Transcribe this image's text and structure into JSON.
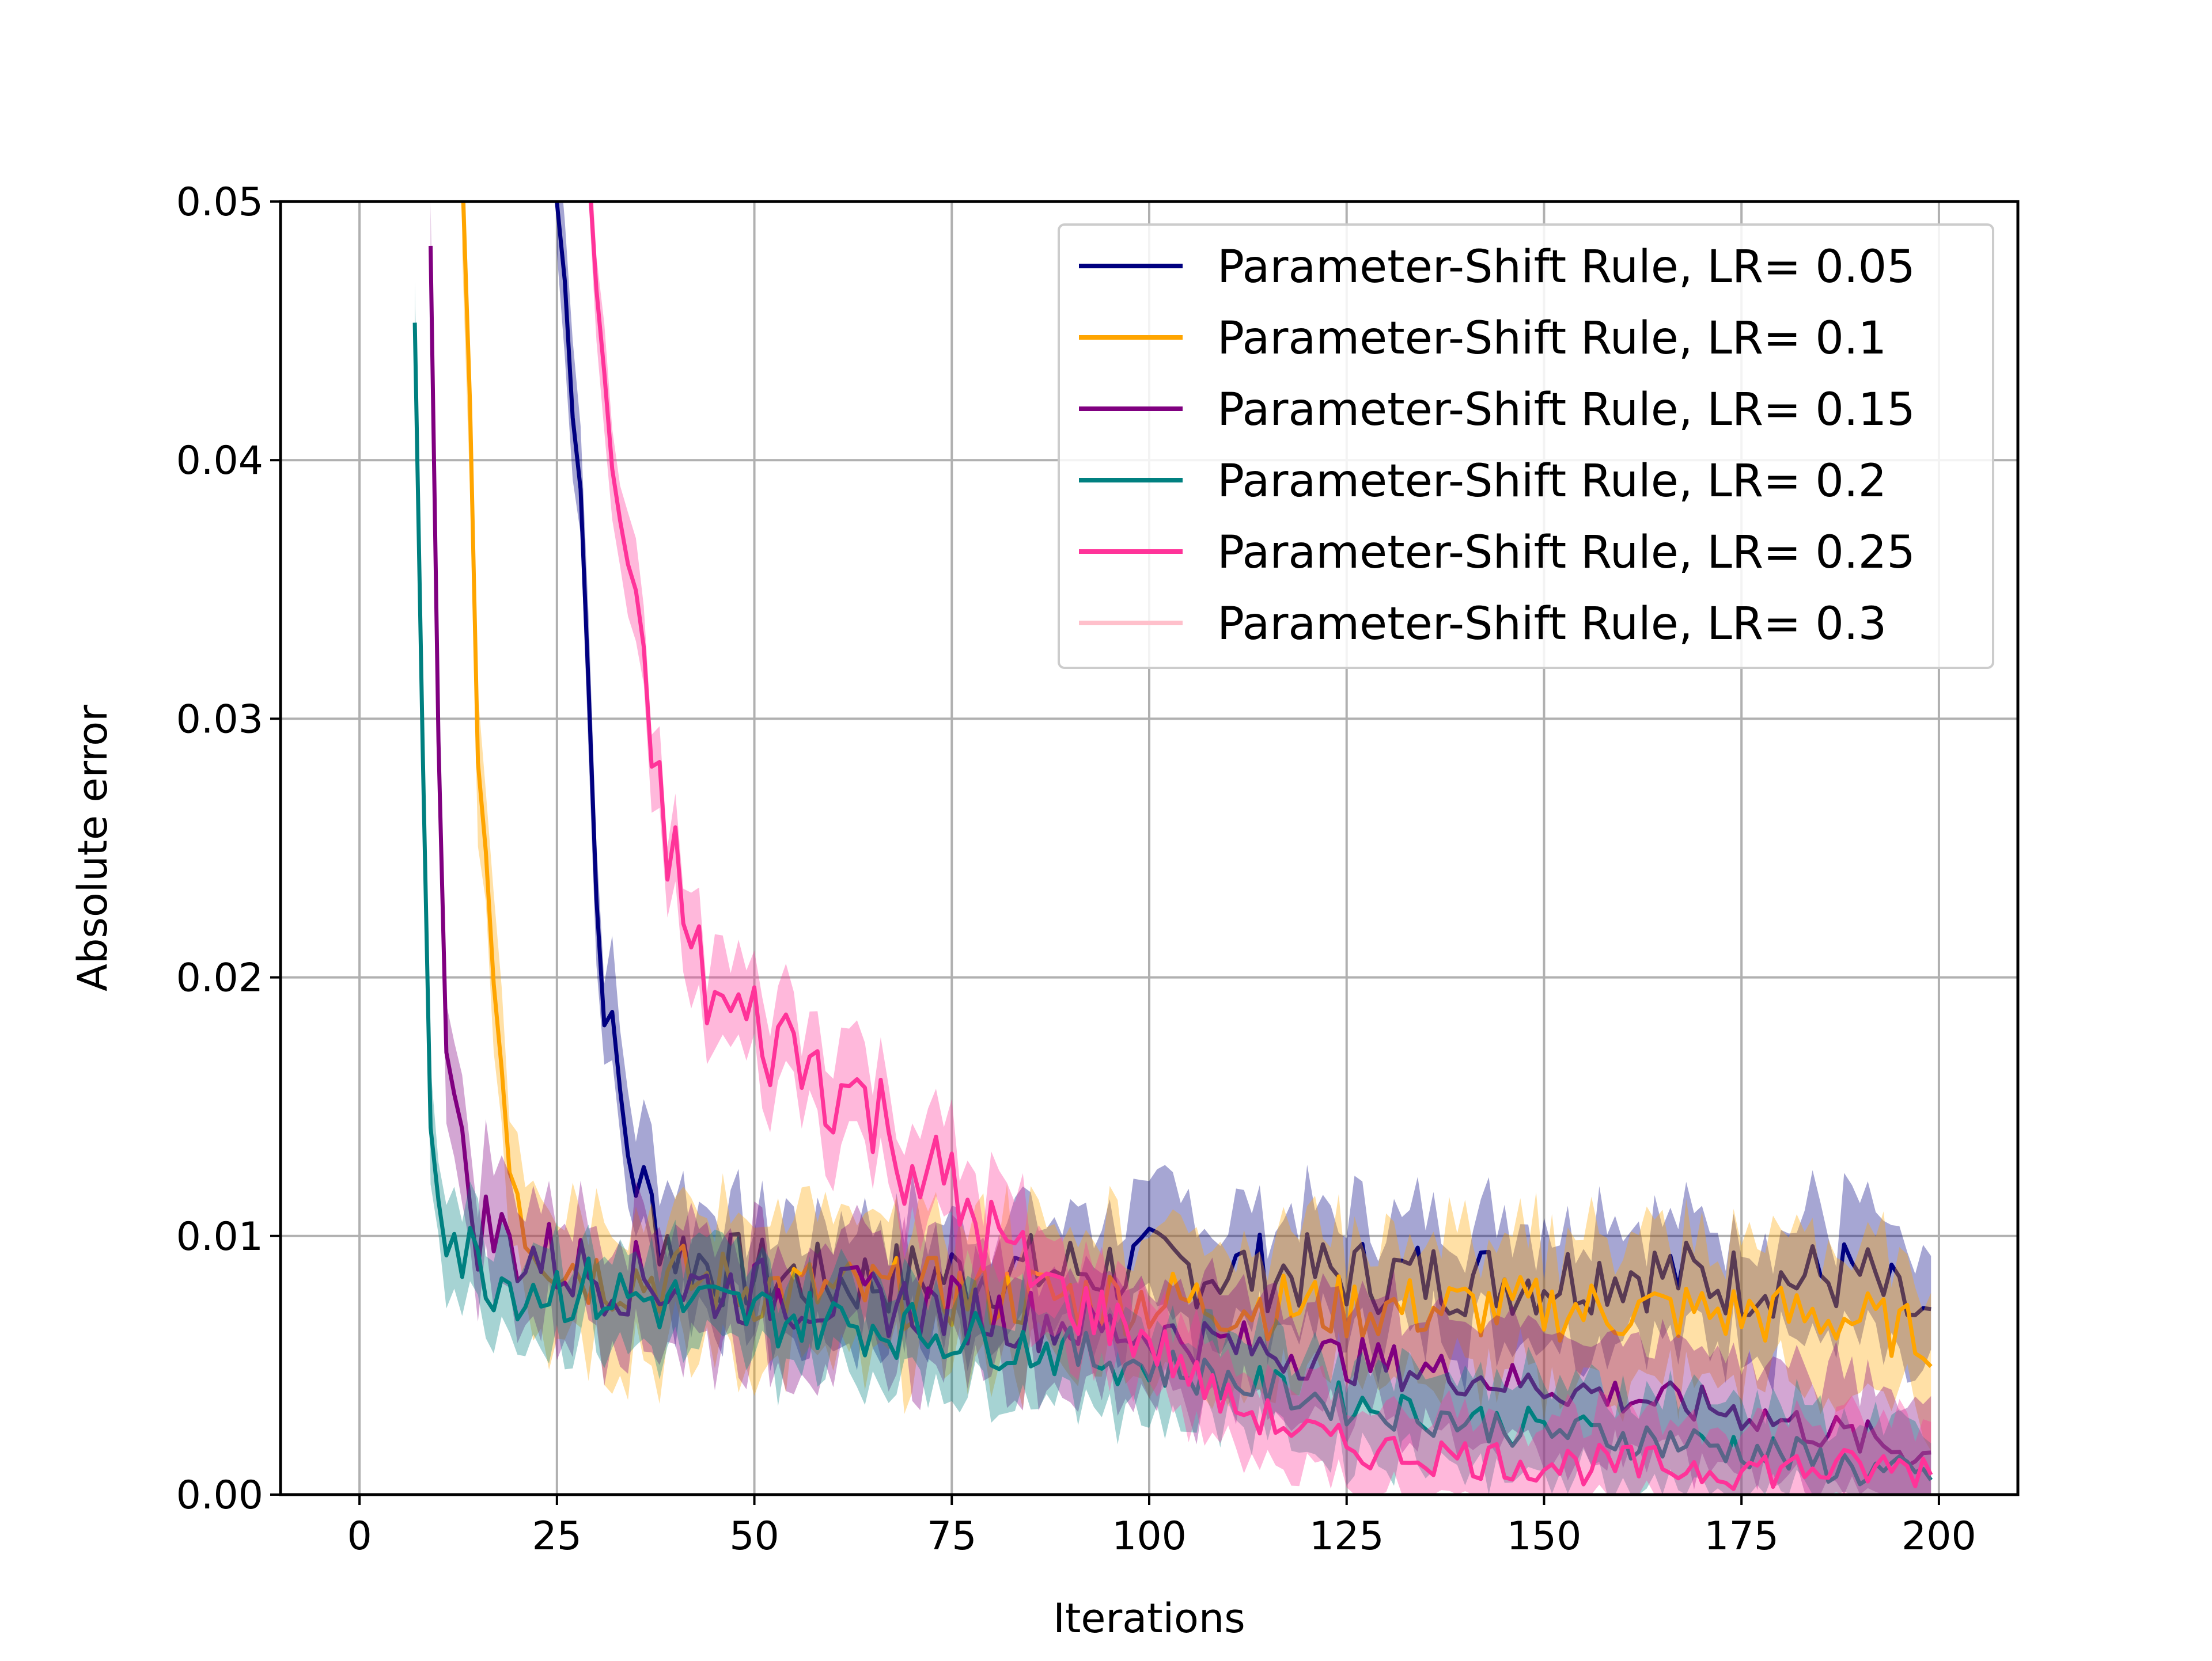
{
  "chart_data": {
    "type": "line",
    "title": "",
    "xlabel": "Iterations",
    "ylabel": "Absolute error",
    "xlim": [
      -10,
      210
    ],
    "ylim": [
      0,
      0.05
    ],
    "xticks": [
      0,
      25,
      50,
      75,
      100,
      125,
      150,
      175,
      200
    ],
    "xtick_labels": [
      "0",
      "25",
      "50",
      "75",
      "100",
      "125",
      "150",
      "175",
      "200"
    ],
    "yticks": [
      0.0,
      0.01,
      0.02,
      0.03,
      0.04,
      0.05
    ],
    "ytick_labels": [
      "0.00",
      "0.01",
      "0.02",
      "0.03",
      "0.04",
      "0.05"
    ],
    "grid": true,
    "legend_position": "upper right",
    "series": [
      {
        "name": "Parameter-Shift Rule, LR= 0.05",
        "color": "#000080",
        "x": [
          25,
          28,
          30,
          32,
          34,
          36,
          40,
          45,
          50,
          60,
          75,
          100,
          125,
          150,
          160,
          175,
          190,
          199
        ],
        "y": [
          0.05,
          0.04,
          0.023,
          0.017,
          0.0135,
          0.0115,
          0.0095,
          0.0088,
          0.0085,
          0.0082,
          0.0085,
          0.0088,
          0.0085,
          0.0083,
          0.0087,
          0.0082,
          0.0085,
          0.0065
        ],
        "band": 0.0025
      },
      {
        "name": "Parameter-Shift Rule, LR= 0.1",
        "color": "#FFA500",
        "x": [
          13,
          15,
          17,
          19,
          21,
          25,
          30,
          40,
          50,
          60,
          75,
          100,
          125,
          150,
          175,
          190,
          199
        ],
        "y": [
          0.05,
          0.03,
          0.02,
          0.014,
          0.0105,
          0.0092,
          0.0085,
          0.0083,
          0.008,
          0.0078,
          0.0078,
          0.0075,
          0.0072,
          0.0072,
          0.007,
          0.0068,
          0.006
        ],
        "band": 0.003
      },
      {
        "name": "Parameter-Shift Rule, LR= 0.15",
        "color": "#800080",
        "x": [
          9,
          10,
          11,
          12,
          13,
          15,
          20,
          30,
          50,
          75,
          100,
          125,
          150,
          175,
          199
        ],
        "y": [
          0.05,
          0.03,
          0.019,
          0.015,
          0.0125,
          0.0105,
          0.0095,
          0.0085,
          0.0078,
          0.0072,
          0.0062,
          0.0052,
          0.0042,
          0.0032,
          0.0015
        ],
        "band": 0.0025
      },
      {
        "name": "Parameter-Shift Rule, LR= 0.2",
        "color": "#008080",
        "x": [
          7,
          8,
          9,
          10,
          11,
          13,
          15,
          20,
          30,
          50,
          75,
          100,
          125,
          150,
          175,
          199
        ],
        "y": [
          0.045,
          0.03,
          0.015,
          0.013,
          0.011,
          0.0095,
          0.0088,
          0.0082,
          0.0078,
          0.007,
          0.0062,
          0.005,
          0.0035,
          0.0025,
          0.0018,
          0.0005
        ],
        "band": 0.002
      },
      {
        "name": "Parameter-Shift Rule, LR= 0.25",
        "color": "#FF3399",
        "x": [
          29,
          32,
          35,
          38,
          40,
          42,
          45,
          50,
          55,
          60,
          65,
          70,
          75,
          80,
          85,
          90,
          100,
          110,
          125,
          150,
          175,
          199
        ],
        "y": [
          0.05,
          0.04,
          0.033,
          0.027,
          0.024,
          0.021,
          0.019,
          0.018,
          0.0172,
          0.016,
          0.0148,
          0.013,
          0.0115,
          0.01,
          0.0085,
          0.0075,
          0.006,
          0.0035,
          0.0018,
          0.0012,
          0.001,
          0.001
        ],
        "band": 0.002
      },
      {
        "name": "Parameter-Shift Rule, LR= 0.3",
        "color": "#FFC0CB",
        "x": [],
        "y": [],
        "band": 0
      }
    ]
  }
}
